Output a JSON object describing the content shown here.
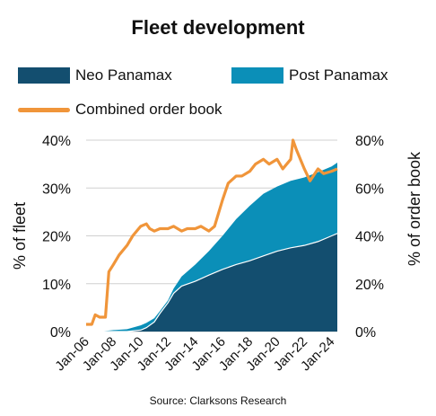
{
  "title": "Fleet development",
  "source": "Source: Clarksons Research",
  "legend": [
    {
      "label": "Neo Panamax",
      "kind": "box",
      "color": "#134e6f"
    },
    {
      "label": "Post Panamax",
      "kind": "box",
      "color": "#0b8fb8"
    },
    {
      "label": "Combined order book",
      "kind": "line",
      "color": "#f0953a"
    }
  ],
  "chart_data": {
    "type": "area",
    "title": "Fleet development",
    "xlabel": "",
    "ylabel": "% of fleet",
    "y2label": "% of order book",
    "x_tick_labels": [
      "Jan-06",
      "Jan-08",
      "Jan-10",
      "Jan-12",
      "Jan-14",
      "Jan-16",
      "Jan-18",
      "Jan-20",
      "Jan-22",
      "Jan-24"
    ],
    "y_ticks": [
      "0%",
      "10%",
      "20%",
      "30%",
      "40%"
    ],
    "y2_ticks": [
      "0%",
      "20%",
      "40%",
      "60%",
      "80%"
    ],
    "ylim": [
      0,
      40
    ],
    "y2lim": [
      0,
      80
    ],
    "xlim": [
      "2006-01",
      "2024-06"
    ],
    "grid": true,
    "legend_position": "top",
    "series": [
      {
        "name": "Neo Panamax",
        "type": "area",
        "axis": "left",
        "color": "#134e6f",
        "x": [
          "2006-01",
          "2007-01",
          "2008-01",
          "2009-01",
          "2010-01",
          "2010-06",
          "2011-01",
          "2011-06",
          "2012-01",
          "2012-06",
          "2013-01",
          "2014-01",
          "2015-01",
          "2016-01",
          "2017-01",
          "2018-01",
          "2019-01",
          "2020-01",
          "2021-01",
          "2022-01",
          "2023-01",
          "2024-01",
          "2024-06"
        ],
        "values": [
          0,
          0,
          0,
          0,
          0.3,
          0.8,
          2.0,
          3.8,
          6.0,
          8.0,
          9.5,
          10.5,
          11.8,
          13.0,
          14.0,
          14.8,
          15.8,
          16.8,
          17.5,
          18.0,
          18.8,
          20.0,
          20.5
        ]
      },
      {
        "name": "Post Panamax",
        "type": "area",
        "stacked": true,
        "axis": "left",
        "color": "#0b8fb8",
        "x": [
          "2006-01",
          "2007-01",
          "2008-01",
          "2009-01",
          "2010-01",
          "2010-06",
          "2011-01",
          "2011-06",
          "2012-01",
          "2012-06",
          "2013-01",
          "2014-01",
          "2015-01",
          "2016-01",
          "2017-01",
          "2018-01",
          "2019-01",
          "2020-01",
          "2021-01",
          "2022-01",
          "2023-01",
          "2024-01",
          "2024-06"
        ],
        "values": [
          0,
          0,
          0.3,
          0.5,
          1.0,
          1.0,
          0.8,
          0.5,
          0.5,
          1.0,
          2.0,
          3.5,
          5.0,
          7.0,
          9.5,
          11.5,
          13.0,
          13.5,
          14.0,
          14.2,
          14.5,
          14.5,
          14.8
        ]
      },
      {
        "name": "Combined order book",
        "type": "line",
        "axis": "right",
        "color": "#f0953a",
        "x": [
          "2006-01",
          "2006-06",
          "2006-09",
          "2007-01",
          "2007-06",
          "2007-09",
          "2008-01",
          "2008-06",
          "2009-01",
          "2009-06",
          "2010-01",
          "2010-06",
          "2010-09",
          "2011-01",
          "2011-06",
          "2012-01",
          "2012-06",
          "2013-01",
          "2013-06",
          "2014-01",
          "2014-06",
          "2015-01",
          "2015-06",
          "2016-01",
          "2016-06",
          "2017-01",
          "2017-06",
          "2018-01",
          "2018-06",
          "2019-01",
          "2019-06",
          "2020-01",
          "2020-06",
          "2021-01",
          "2021-03",
          "2021-06",
          "2022-01",
          "2022-06",
          "2023-01",
          "2023-06",
          "2024-01",
          "2024-06"
        ],
        "values": [
          3,
          3,
          7,
          6,
          6,
          25,
          28,
          32,
          36,
          40,
          44,
          45,
          43,
          42,
          43,
          43,
          44,
          42,
          43,
          43,
          44,
          42,
          44,
          55,
          62,
          65,
          65,
          67,
          70,
          72,
          70,
          72,
          68,
          72,
          80,
          76,
          68,
          63,
          68,
          66,
          67,
          68
        ]
      }
    ]
  }
}
